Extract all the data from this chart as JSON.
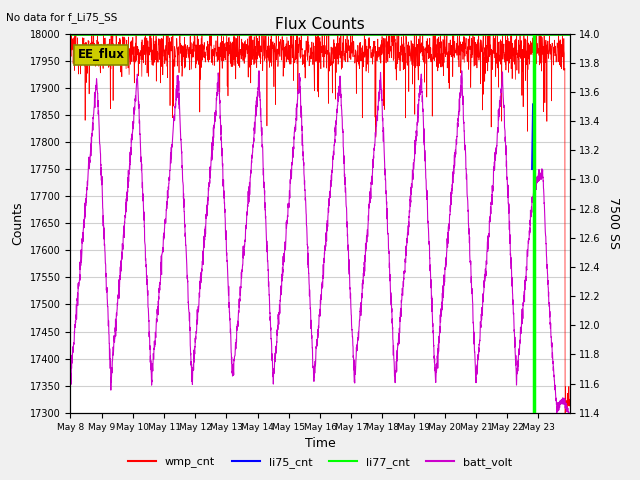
{
  "title": "Flux Counts",
  "no_data_label": "No data for f_Li75_SS",
  "xlabel": "Time",
  "ylabel_left": "Counts",
  "ylabel_right": "7500 SS",
  "legend_labels": [
    "wmp_cnt",
    "li75_cnt",
    "li77_cnt",
    "batt_volt"
  ],
  "x_tick_labels": [
    "May 8",
    "May 9",
    "May 10",
    "May 11",
    "May 12",
    "May 13",
    "May 14",
    "May 15",
    "May 16",
    "May 17",
    "May 18",
    "May 19",
    "May 20",
    "May 21",
    "May 22",
    "May 23"
  ],
  "ylim_left": [
    17300,
    18000
  ],
  "ylim_right": [
    11.4,
    14.0
  ],
  "left_ticks": [
    17300,
    17350,
    17400,
    17450,
    17500,
    17550,
    17600,
    17650,
    17700,
    17750,
    17800,
    17850,
    17900,
    17950,
    18000
  ],
  "right_ticks": [
    11.4,
    11.6,
    11.8,
    12.0,
    12.2,
    12.4,
    12.6,
    12.8,
    13.0,
    13.2,
    13.4,
    13.6,
    13.8,
    14.0
  ],
  "background_color": "#f0f0f0",
  "plot_bg_color": "#ffffff",
  "grid_color": "#d0d0d0",
  "wmp_color": "#ff0000",
  "li75_color": "#0000ff",
  "li77_color": "#00cc00",
  "batt_color": "#cc00cc",
  "vline_color": "#00ff00",
  "annotation_text": "EE_flux",
  "annotation_bg": "#cccc00",
  "annotation_border": "#888800",
  "n_days": 16,
  "wmp_mean": 17968,
  "wmp_std": 18,
  "batt_min": 17360,
  "batt_max": 17920,
  "batt_period": 1.3,
  "vline_x": 14.85
}
